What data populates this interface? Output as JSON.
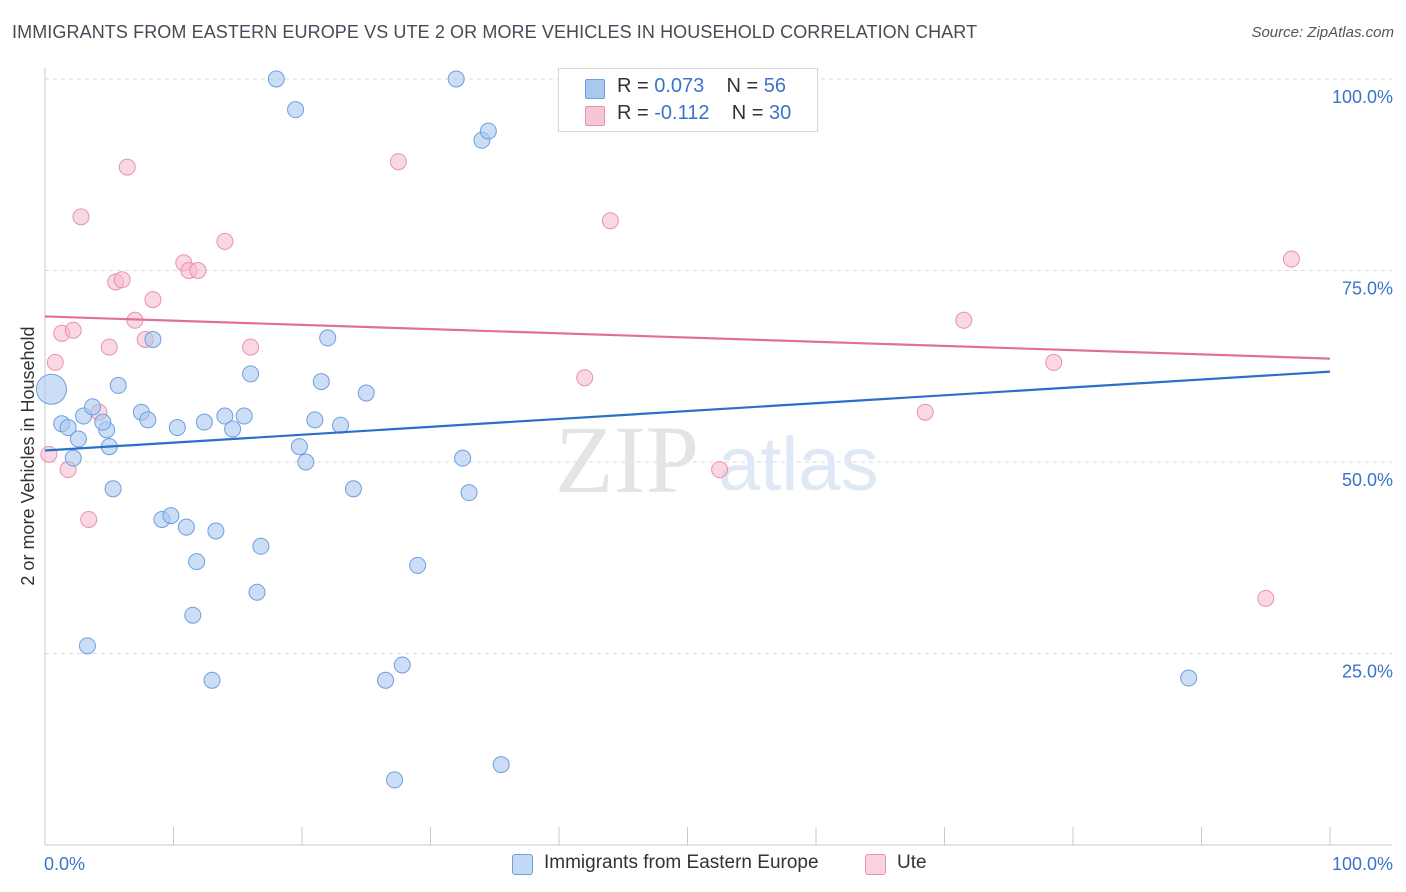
{
  "title": "IMMIGRANTS FROM EASTERN EUROPE VS UTE 2 OR MORE VEHICLES IN HOUSEHOLD CORRELATION CHART",
  "source": "Source: ZipAtlas.com",
  "watermark": {
    "zip": "ZIP",
    "atlas": "atlas"
  },
  "colors": {
    "blue_fill": "#a9c8f0",
    "blue_stroke": "#6f9ee0",
    "blue_line": "#2c6fc9",
    "pink_fill": "#f6b8cc",
    "pink_stroke": "#e892ae",
    "pink_line": "#e0709a",
    "axis_text": "#3a74c8",
    "grid": "#d9d9d9"
  },
  "legend": {
    "rows": [
      {
        "r_label": "R =",
        "r_value": "0.073",
        "n_label": "N =",
        "n_value": "56"
      },
      {
        "r_label": "R =",
        "r_value": "-0.112",
        "n_label": "N =",
        "n_value": "30"
      }
    ]
  },
  "bottom_legend": [
    {
      "label": "Immigrants from Eastern Europe"
    },
    {
      "label": "Ute"
    }
  ],
  "chart_data": {
    "type": "scatter",
    "title": "IMMIGRANTS FROM EASTERN EUROPE VS UTE 2 OR MORE VEHICLES IN HOUSEHOLD CORRELATION CHART",
    "xlabel": "",
    "ylabel": "2 or more Vehicles in Household",
    "xlim": [
      0,
      100
    ],
    "ylim": [
      0,
      100
    ],
    "x_tick_labels": {
      "left": "0.0%",
      "right": "100.0%"
    },
    "y_ticks": [
      {
        "value": 100,
        "label": "100.0%"
      },
      {
        "value": 75,
        "label": "75.0%"
      },
      {
        "value": 50,
        "label": "50.0%"
      },
      {
        "value": 25,
        "label": "25.0%"
      }
    ],
    "grid": true,
    "series": [
      {
        "name": "Immigrants from Eastern Europe",
        "color": "#a9c8f0",
        "r": 0.073,
        "n": 56,
        "trend": {
          "x": [
            0,
            100
          ],
          "y": [
            51.5,
            61.8
          ]
        },
        "points": [
          [
            0.5,
            59.5,
            "large"
          ],
          [
            1.3,
            55.0
          ],
          [
            1.8,
            54.5
          ],
          [
            2.2,
            50.5
          ],
          [
            2.6,
            53.0
          ],
          [
            3.0,
            56.0
          ],
          [
            3.3,
            26.0
          ],
          [
            3.7,
            57.2
          ],
          [
            4.8,
            54.2
          ],
          [
            4.5,
            55.2
          ],
          [
            5.0,
            52.0
          ],
          [
            5.7,
            60.0
          ],
          [
            5.3,
            46.5
          ],
          [
            7.5,
            56.5
          ],
          [
            8.0,
            55.5
          ],
          [
            8.4,
            66.0
          ],
          [
            9.1,
            42.5
          ],
          [
            9.8,
            43.0
          ],
          [
            10.3,
            54.5
          ],
          [
            11.0,
            41.5
          ],
          [
            11.8,
            37.0
          ],
          [
            11.5,
            30.0
          ],
          [
            12.4,
            55.2
          ],
          [
            13.0,
            21.5
          ],
          [
            13.3,
            41.0
          ],
          [
            14.0,
            56.0
          ],
          [
            14.6,
            54.3
          ],
          [
            15.5,
            56.0
          ],
          [
            16.0,
            61.5
          ],
          [
            16.5,
            33.0
          ],
          [
            16.8,
            39.0
          ],
          [
            18.0,
            100.0
          ],
          [
            19.5,
            96.0
          ],
          [
            19.8,
            52.0
          ],
          [
            20.3,
            50.0
          ],
          [
            21.0,
            55.5
          ],
          [
            21.5,
            60.5
          ],
          [
            22.0,
            66.2
          ],
          [
            23.0,
            54.8
          ],
          [
            24.0,
            46.5
          ],
          [
            25.0,
            59.0
          ],
          [
            26.5,
            21.5
          ],
          [
            27.2,
            8.5
          ],
          [
            27.8,
            23.5
          ],
          [
            29.0,
            36.5
          ],
          [
            32.0,
            100.0
          ],
          [
            32.5,
            50.5
          ],
          [
            33.0,
            46.0
          ],
          [
            34.0,
            92.0
          ],
          [
            34.5,
            93.2
          ],
          [
            35.5,
            10.5
          ],
          [
            89.0,
            21.8
          ]
        ]
      },
      {
        "name": "Ute",
        "color": "#f6b8cc",
        "r": -0.112,
        "n": 30,
        "trend": {
          "x": [
            0,
            100
          ],
          "y": [
            69.0,
            63.5
          ]
        },
        "points": [
          [
            0.3,
            51.0
          ],
          [
            0.8,
            63.0
          ],
          [
            1.3,
            66.8
          ],
          [
            1.8,
            49.0
          ],
          [
            2.2,
            67.2
          ],
          [
            2.8,
            82.0
          ],
          [
            3.4,
            42.5
          ],
          [
            4.2,
            56.5
          ],
          [
            5.0,
            65.0
          ],
          [
            5.5,
            73.5
          ],
          [
            6.0,
            73.8
          ],
          [
            6.4,
            88.5
          ],
          [
            7.0,
            68.5
          ],
          [
            7.8,
            66.0
          ],
          [
            8.4,
            71.2
          ],
          [
            10.8,
            76.0
          ],
          [
            11.2,
            75.0
          ],
          [
            11.9,
            75.0
          ],
          [
            14.0,
            78.8
          ],
          [
            16.0,
            65.0
          ],
          [
            27.5,
            89.2
          ],
          [
            42.0,
            61.0
          ],
          [
            44.0,
            81.5
          ],
          [
            52.5,
            49.0
          ],
          [
            68.5,
            56.5
          ],
          [
            71.5,
            68.5
          ],
          [
            78.5,
            63.0
          ],
          [
            95.0,
            32.2
          ],
          [
            97.0,
            76.5
          ]
        ]
      }
    ]
  }
}
